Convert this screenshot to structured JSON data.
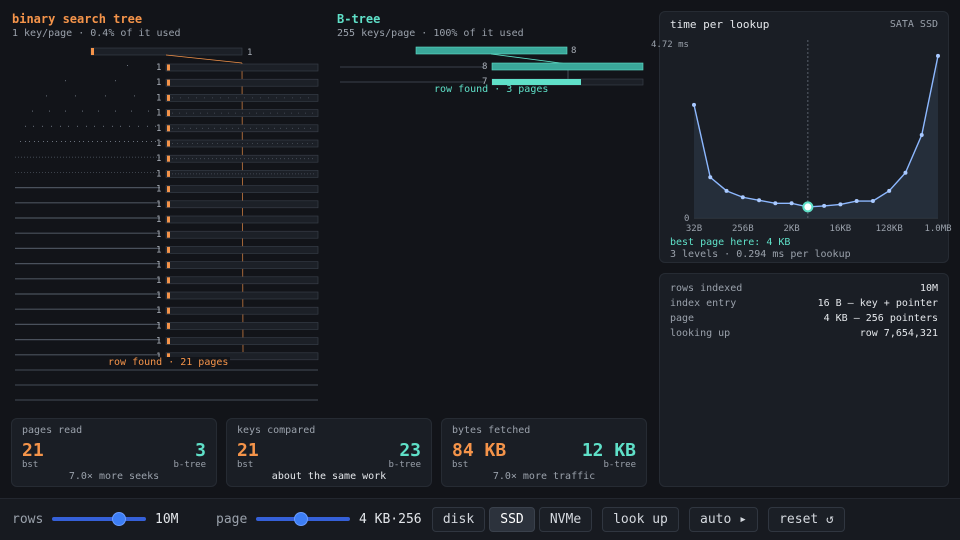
{
  "bst": {
    "title": "binary search tree",
    "subtitle": "1 key/page · 0.4% of it used",
    "node_label": "1",
    "found": "row found · 21 pages",
    "color": "#f5944a"
  },
  "btree": {
    "title": "B-tree",
    "subtitle": "255 keys/page · 100% of it used",
    "root_label": "8",
    "level2_label": "8",
    "level3_label": "7",
    "found": "row found · 3 pages",
    "color": "#5fe0c8"
  },
  "stats": {
    "pages": {
      "label": "pages read",
      "bst": "21",
      "btree": "3",
      "bst_tag": "bst",
      "btree_tag": "b-tree",
      "note": "7.0× more seeks"
    },
    "keys": {
      "label": "keys compared",
      "bst": "21",
      "btree": "23",
      "bst_tag": "bst",
      "btree_tag": "b-tree",
      "note": "about the same work"
    },
    "bytes": {
      "label": "bytes fetched",
      "bst": "84 KB",
      "btree": "12 KB",
      "bst_tag": "bst",
      "btree_tag": "b-tree",
      "note": "7.0× more traffic"
    }
  },
  "lookup_chart": {
    "title": "time per lookup",
    "device": "SATA SSD",
    "best": "best page here: 4 KB",
    "detail": "3 levels · 0.294 ms per lookup"
  },
  "chart_data": {
    "type": "line",
    "title": "time per lookup",
    "x_labels": [
      "32B",
      "256B",
      "2KB",
      "16KB",
      "128KB",
      "1.0MB"
    ],
    "x_log2": [
      5,
      6,
      7,
      8,
      9,
      10,
      11,
      12,
      13,
      14,
      15,
      16,
      17,
      18,
      19,
      20
    ],
    "y_ms": [
      3.0,
      1.08,
      0.72,
      0.55,
      0.47,
      0.39,
      0.39,
      0.294,
      0.32,
      0.36,
      0.45,
      0.45,
      0.72,
      1.2,
      2.2,
      4.3
    ],
    "best_x_log2": 12,
    "y_top_label": "4.72 ms",
    "y_bottom_label": "0",
    "ylim": [
      0,
      4.72
    ]
  },
  "info": {
    "rows": [
      {
        "key": "rows indexed",
        "value": "10M"
      },
      {
        "key": "index entry",
        "value": "16 B — key + pointer"
      },
      {
        "key": "page",
        "value": "4 KB — 256 pointers"
      },
      {
        "key": "looking up",
        "value": "row 7,654,321"
      }
    ]
  },
  "controls": {
    "rows_label": "rows",
    "rows_value": "10M",
    "rows_fraction": 0.75,
    "page_label": "page",
    "page_value": "4 KB·256",
    "page_fraction": 0.47,
    "device_options": [
      "disk",
      "SSD",
      "NVMe"
    ],
    "device_selected": "SSD",
    "lookup_button": "look up",
    "auto_button": "auto ▸",
    "reset_button": "reset ↺"
  }
}
